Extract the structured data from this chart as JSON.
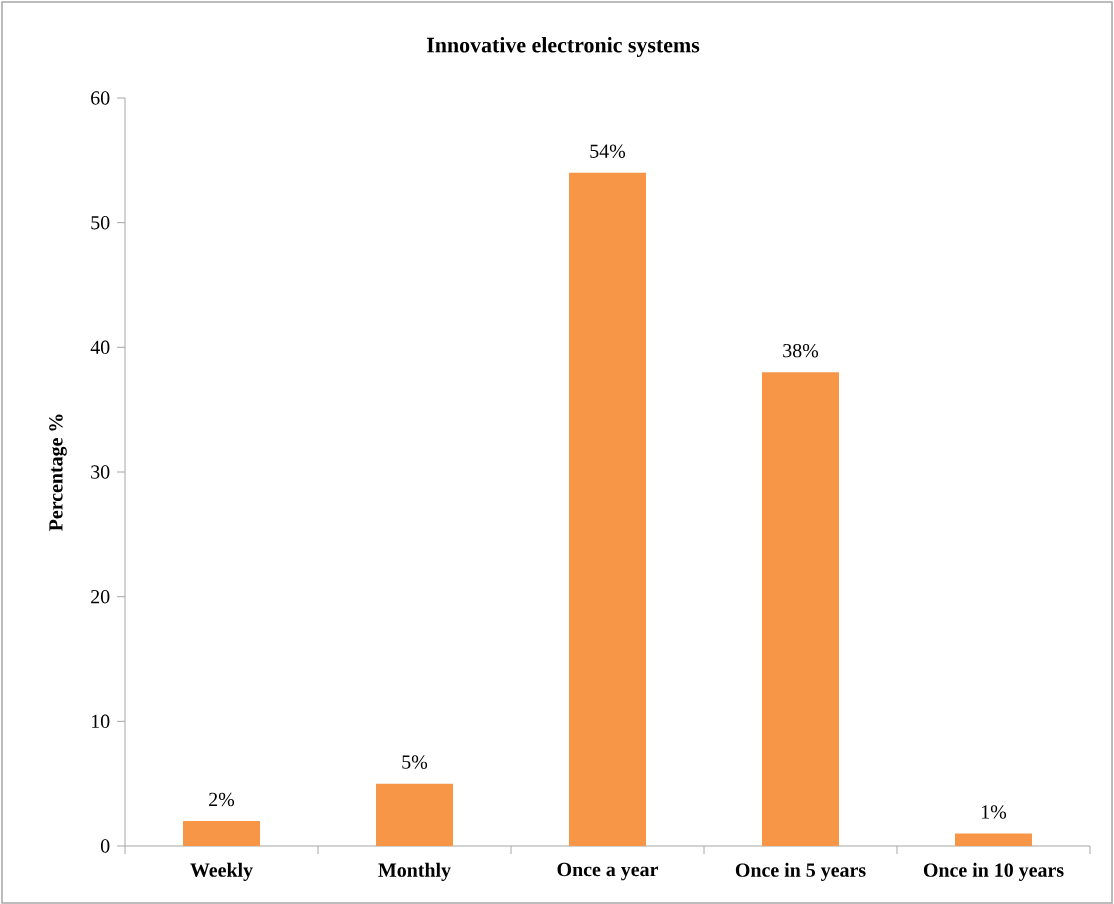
{
  "chart_data": {
    "type": "bar",
    "title": "Innovative electronic systems",
    "ylabel": "Percentage %",
    "categories": [
      "Weekly",
      "Monthly",
      "Once a year",
      "Once in 5 years",
      "Once in 10 years"
    ],
    "values": [
      2,
      5,
      54,
      38,
      1
    ],
    "value_labels": [
      "2%",
      "5%",
      "54%",
      "38%",
      "1%"
    ],
    "color": "#f79646",
    "ylim": [
      0,
      60
    ],
    "yticks": [
      0,
      10,
      20,
      30,
      40,
      50,
      60
    ]
  }
}
